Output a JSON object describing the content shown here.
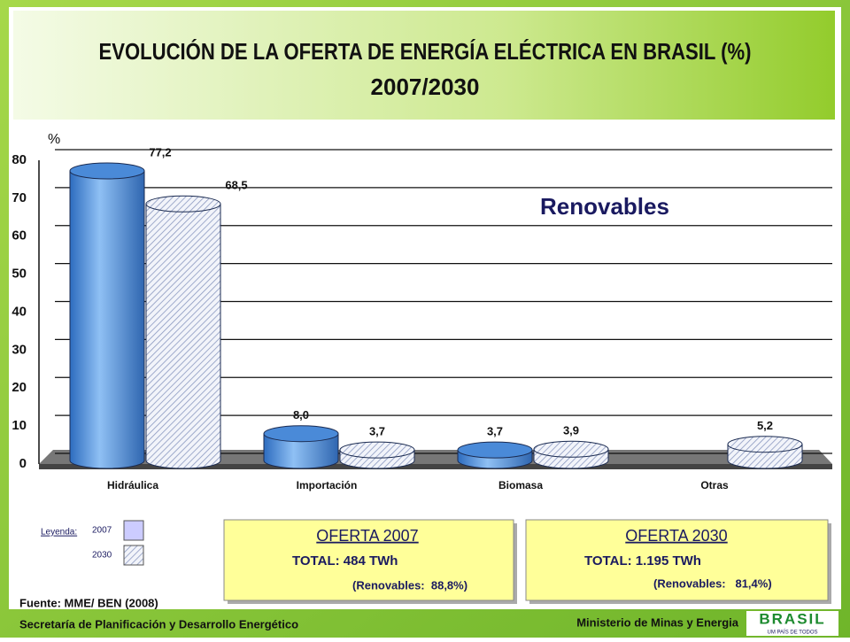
{
  "header": {
    "title": "EVOLUCIÓN DE LA OFERTA DE ENERGÍA ELÉCTRICA EN BRASIL (%)",
    "subtitle": "2007/2030"
  },
  "chart_data": {
    "type": "bar",
    "y_label": "%",
    "annotation": "Renovables",
    "categories": [
      "Hidráulica",
      "Importación",
      "Biomasa",
      "Otras"
    ],
    "series": [
      {
        "name": "2007",
        "color": "#5b9be0",
        "hatch": false,
        "values": [
          77.2,
          8.0,
          3.7,
          null
        ],
        "value_labels": [
          "77,2",
          "8,0",
          "3,7",
          null
        ]
      },
      {
        "name": "2030",
        "color": "#d3daee",
        "hatch": true,
        "values": [
          68.5,
          3.7,
          3.9,
          5.2
        ],
        "value_labels": [
          "68,5",
          "3,7",
          "3,9",
          "5,2"
        ]
      }
    ],
    "ylim": [
      0,
      80
    ],
    "yticks": [
      0,
      10,
      20,
      30,
      40,
      50,
      60,
      70,
      80
    ],
    "grid": true,
    "legend_title": "Leyenda:",
    "source": "Fuente: MME/ BEN (2008)"
  },
  "boxes": [
    {
      "title": "OFERTA 2007",
      "total": "TOTAL: 484 TWh",
      "renewables": "(Renovables:  88,8%)"
    },
    {
      "title": "OFERTA 2030",
      "total": "TOTAL: 1.195 TWh",
      "renewables": "(Renovables:   81,4%)"
    }
  ],
  "footer": {
    "left": "Secretaría de Planificación y Desarrollo Energético",
    "right": "Ministerio de Minas y Energia",
    "logo": "BRASIL",
    "logo_tagline": "UM PAÍS DE TODOS"
  }
}
